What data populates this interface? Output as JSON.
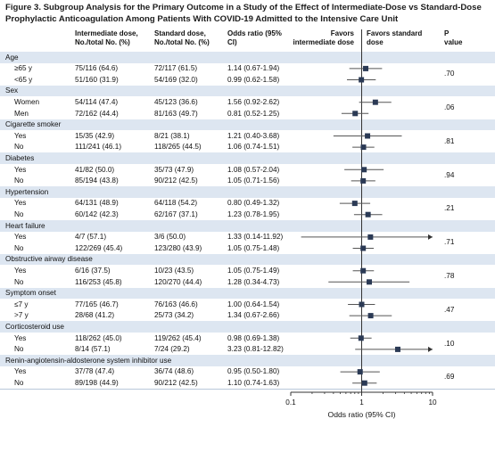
{
  "title": "Figure 3. Subgroup Analysis for the Primary Outcome in a Study of the Effect of Intermediate-Dose vs Standard-Dose Prophylactic Anticoagulation Among Patients With COVID-19 Admitted to the Intensive Care Unit",
  "headers": {
    "intermediate": "Intermediate dose, No./total No. (%)",
    "standard": "Standard dose, No./total No. (%)",
    "or": "Odds ratio (95% CI)",
    "favors_left": "Favors intermediate dose",
    "favors_right": "Favors standard dose",
    "p_label": "P value"
  },
  "chart_data": {
    "type": "forest",
    "x_scale": "log",
    "xlim": [
      0.1,
      10
    ],
    "x_ticks": [
      "0.1",
      "1",
      "10"
    ],
    "xlabel": "Odds ratio (95% CI)",
    "reference_line": 1,
    "groups": [
      {
        "name": "Age",
        "p": ".70",
        "rows": [
          {
            "label": "≥65 y",
            "intermediate": "75/116 (64.6)",
            "standard": "72/117 (61.5)",
            "or_text": "1.14 (0.67-1.94)",
            "or": 1.14,
            "lo": 0.67,
            "hi": 1.94
          },
          {
            "label": "<65 y",
            "intermediate": "51/160 (31.9)",
            "standard": "54/169 (32.0)",
            "or_text": "0.99 (0.62-1.58)",
            "or": 0.99,
            "lo": 0.62,
            "hi": 1.58
          }
        ]
      },
      {
        "name": "Sex",
        "p": ".06",
        "rows": [
          {
            "label": "Women",
            "intermediate": "54/114 (47.4)",
            "standard": "45/123 (36.6)",
            "or_text": "1.56 (0.92-2.62)",
            "or": 1.56,
            "lo": 0.92,
            "hi": 2.62
          },
          {
            "label": "Men",
            "intermediate": "72/162 (44.4)",
            "standard": "81/163 (49.7)",
            "or_text": "0.81 (0.52-1.25)",
            "or": 0.81,
            "lo": 0.52,
            "hi": 1.25
          }
        ]
      },
      {
        "name": "Cigarette smoker",
        "p": ".81",
        "rows": [
          {
            "label": "Yes",
            "intermediate": "15/35 (42.9)",
            "standard": "8/21 (38.1)",
            "or_text": "1.21 (0.40-3.68)",
            "or": 1.21,
            "lo": 0.4,
            "hi": 3.68
          },
          {
            "label": "No",
            "intermediate": "111/241 (46.1)",
            "standard": "118/265 (44.5)",
            "or_text": "1.06 (0.74-1.51)",
            "or": 1.06,
            "lo": 0.74,
            "hi": 1.51
          }
        ]
      },
      {
        "name": "Diabetes",
        "p": ".94",
        "rows": [
          {
            "label": "Yes",
            "intermediate": "41/82 (50.0)",
            "standard": "35/73 (47.9)",
            "or_text": "1.08 (0.57-2.04)",
            "or": 1.08,
            "lo": 0.57,
            "hi": 2.04
          },
          {
            "label": "No",
            "intermediate": "85/194 (43.8)",
            "standard": "90/212 (42.5)",
            "or_text": "1.05 (0.71-1.56)",
            "or": 1.05,
            "lo": 0.71,
            "hi": 1.56
          }
        ]
      },
      {
        "name": "Hypertension",
        "p": ".21",
        "rows": [
          {
            "label": "Yes",
            "intermediate": "64/131 (48.9)",
            "standard": "64/118 (54.2)",
            "or_text": "0.80 (0.49-1.32)",
            "or": 0.8,
            "lo": 0.49,
            "hi": 1.32
          },
          {
            "label": "No",
            "intermediate": "60/142 (42.3)",
            "standard": "62/167 (37.1)",
            "or_text": "1.23 (0.78-1.95)",
            "or": 1.23,
            "lo": 0.78,
            "hi": 1.95
          }
        ]
      },
      {
        "name": "Heart failure",
        "p": ".71",
        "rows": [
          {
            "label": "Yes",
            "intermediate": "4/7 (57.1)",
            "standard": "3/6 (50.0)",
            "or_text": "1.33 (0.14-11.92)",
            "or": 1.33,
            "lo": 0.14,
            "hi": 11.92
          },
          {
            "label": "No",
            "intermediate": "122/269 (45.4)",
            "standard": "123/280 (43.9)",
            "or_text": "1.05 (0.75-1.48)",
            "or": 1.05,
            "lo": 0.75,
            "hi": 1.48
          }
        ]
      },
      {
        "name": "Obstructive airway disease",
        "p": ".78",
        "rows": [
          {
            "label": "Yes",
            "intermediate": "6/16 (37.5)",
            "standard": "10/23 (43.5)",
            "or_text": "1.05 (0.75-1.49)",
            "or": 1.05,
            "lo": 0.75,
            "hi": 1.49
          },
          {
            "label": "No",
            "intermediate": "116/253 (45.8)",
            "standard": "120/270 (44.4)",
            "or_text": "1.28 (0.34-4.73)",
            "or": 1.28,
            "lo": 0.34,
            "hi": 4.73
          }
        ]
      },
      {
        "name": "Symptom onset",
        "p": ".47",
        "rows": [
          {
            "label": "≤7 y",
            "intermediate": "77/165 (46.7)",
            "standard": "76/163 (46.6)",
            "or_text": "1.00 (0.64-1.54)",
            "or": 1.0,
            "lo": 0.64,
            "hi": 1.54
          },
          {
            "label": ">7 y",
            "intermediate": "28/68 (41.2)",
            "standard": "25/73 (34.2)",
            "or_text": "1.34 (0.67-2.66)",
            "or": 1.34,
            "lo": 0.67,
            "hi": 2.66
          }
        ]
      },
      {
        "name": "Corticosteroid use",
        "p": ".10",
        "rows": [
          {
            "label": "Yes",
            "intermediate": "118/262 (45.0)",
            "standard": "119/262 (45.4)",
            "or_text": "0.98 (0.69-1.38)",
            "or": 0.98,
            "lo": 0.69,
            "hi": 1.38
          },
          {
            "label": "No",
            "intermediate": "8/14 (57.1)",
            "standard": "7/24 (29.2)",
            "or_text": "3.23 (0.81-12.82)",
            "or": 3.23,
            "lo": 0.81,
            "hi": 12.82
          }
        ]
      },
      {
        "name": "Renin-angiotensin-aldosterone system inhibitor use",
        "p": ".69",
        "rows": [
          {
            "label": "Yes",
            "intermediate": "37/78 (47.4)",
            "standard": "36/74 (48.6)",
            "or_text": "0.95 (0.50-1.80)",
            "or": 0.95,
            "lo": 0.5,
            "hi": 1.8
          },
          {
            "label": "No",
            "intermediate": "89/198 (44.9)",
            "standard": "90/212 (42.5)",
            "or_text": "1.10 (0.74-1.63)",
            "or": 1.1,
            "lo": 0.74,
            "hi": 1.63
          }
        ]
      }
    ]
  }
}
